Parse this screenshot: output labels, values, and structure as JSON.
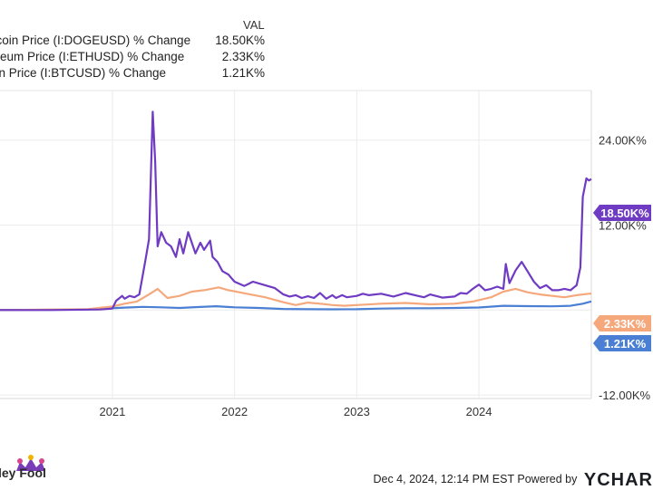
{
  "legend": {
    "header": "VAL",
    "items": [
      {
        "name": "ecoin Price (I:DOGEUSD) % Change",
        "value": "18.50K%"
      },
      {
        "name": "ereum Price (I:ETHUSD) % Change",
        "value": "2.33K%"
      },
      {
        "name": "oin Price (I:BTCUSD) % Change",
        "value": "1.21K%"
      }
    ]
  },
  "footer": {
    "brand": "ley Fool",
    "date": "Dec 4, 2024, 12:14 PM EST",
    "powered": "Powered by",
    "ycharts": "YCHAR"
  },
  "chart_data": {
    "type": "line",
    "x_range": [
      2020.08,
      2024.92
    ],
    "ylim": [
      -12500,
      31000
    ],
    "yticks": [
      {
        "value": 24000,
        "label": "24.00K%"
      },
      {
        "value": 12000,
        "label": "12.00K%"
      },
      {
        "value": -12000,
        "label": "-12.00K%"
      }
    ],
    "xticks": [
      {
        "value": 2021,
        "label": "2021"
      },
      {
        "value": 2022,
        "label": "2022"
      },
      {
        "value": 2023,
        "label": "2023"
      },
      {
        "value": 2024,
        "label": "2024"
      }
    ],
    "series": [
      {
        "name": "Dogecoin Price (I:DOGEUSD) % Change",
        "color": "#6f3bc2",
        "end_label": "18.50K%",
        "x": [
          2020.08,
          2020.5,
          2020.9,
          2021.0,
          2021.03,
          2021.08,
          2021.1,
          2021.14,
          2021.18,
          2021.22,
          2021.27,
          2021.3,
          2021.33,
          2021.35,
          2021.37,
          2021.4,
          2021.44,
          2021.48,
          2021.52,
          2021.55,
          2021.58,
          2021.62,
          2021.65,
          2021.68,
          2021.72,
          2021.75,
          2021.8,
          2021.82,
          2021.86,
          2021.9,
          2021.95,
          2022.0,
          2022.08,
          2022.15,
          2022.25,
          2022.33,
          2022.4,
          2022.45,
          2022.5,
          2022.55,
          2022.6,
          2022.65,
          2022.7,
          2022.75,
          2022.8,
          2022.83,
          2022.88,
          2022.92,
          2023.0,
          2023.05,
          2023.1,
          2023.2,
          2023.3,
          2023.4,
          2023.5,
          2023.55,
          2023.6,
          2023.7,
          2023.8,
          2023.85,
          2023.9,
          2023.95,
          2024.0,
          2024.05,
          2024.1,
          2024.15,
          2024.2,
          2024.22,
          2024.25,
          2024.3,
          2024.35,
          2024.4,
          2024.45,
          2024.5,
          2024.55,
          2024.6,
          2024.65,
          2024.7,
          2024.75,
          2024.8,
          2024.83,
          2024.85,
          2024.88,
          2024.9,
          2024.92
        ],
        "y": [
          0,
          0,
          80,
          200,
          1300,
          2000,
          1600,
          2000,
          1800,
          2200,
          7000,
          10000,
          28000,
          21000,
          9000,
          11000,
          9500,
          9000,
          7500,
          10000,
          8000,
          11000,
          9500,
          8000,
          9500,
          8500,
          9800,
          7500,
          6800,
          5500,
          5000,
          4000,
          3400,
          4000,
          3500,
          3100,
          2200,
          1900,
          2100,
          1700,
          1950,
          1700,
          2400,
          1600,
          2100,
          1700,
          2100,
          1800,
          2000,
          2300,
          2100,
          2300,
          1900,
          2400,
          2000,
          1800,
          2200,
          1750,
          1900,
          2400,
          2300,
          3000,
          3600,
          2800,
          3000,
          3300,
          3000,
          6500,
          3800,
          5600,
          6800,
          5400,
          4000,
          3100,
          3500,
          2800,
          2800,
          3000,
          2800,
          3500,
          6000,
          16000,
          18600,
          18300,
          18500
        ]
      },
      {
        "name": "Ethereum Price (I:ETHUSD) % Change",
        "color": "#f5a87c",
        "end_label": "2.33K%",
        "x": [
          2020.08,
          2020.8,
          2021.0,
          2021.1,
          2021.2,
          2021.3,
          2021.37,
          2021.45,
          2021.55,
          2021.65,
          2021.75,
          2021.87,
          2021.95,
          2022.1,
          2022.25,
          2022.4,
          2022.5,
          2022.6,
          2022.7,
          2022.8,
          2022.9,
          2023.0,
          2023.2,
          2023.4,
          2023.6,
          2023.8,
          2023.95,
          2024.1,
          2024.2,
          2024.3,
          2024.4,
          2024.5,
          2024.6,
          2024.7,
          2024.8,
          2024.9,
          2024.92
        ],
        "y": [
          0,
          120,
          500,
          900,
          1200,
          2200,
          3000,
          1700,
          2000,
          2600,
          2800,
          3200,
          2800,
          2300,
          1800,
          1100,
          700,
          1050,
          900,
          700,
          600,
          700,
          900,
          1000,
          800,
          900,
          1200,
          1800,
          2600,
          3000,
          2500,
          2200,
          2000,
          1800,
          2100,
          2300,
          2330
        ]
      },
      {
        "name": "Bitcoin Price (I:BTCUSD) % Change",
        "color": "#4a7fd4",
        "end_label": "1.21K%",
        "x": [
          2020.08,
          2020.8,
          2021.0,
          2021.1,
          2021.25,
          2021.4,
          2021.55,
          2021.7,
          2021.85,
          2022.0,
          2022.2,
          2022.4,
          2022.6,
          2022.8,
          2023.0,
          2023.2,
          2023.4,
          2023.6,
          2023.8,
          2024.0,
          2024.2,
          2024.4,
          2024.6,
          2024.75,
          2024.85,
          2024.92
        ],
        "y": [
          0,
          80,
          250,
          350,
          450,
          380,
          300,
          420,
          540,
          380,
          300,
          150,
          120,
          100,
          120,
          200,
          250,
          250,
          300,
          360,
          600,
          550,
          520,
          600,
          900,
          1210
        ]
      }
    ]
  }
}
